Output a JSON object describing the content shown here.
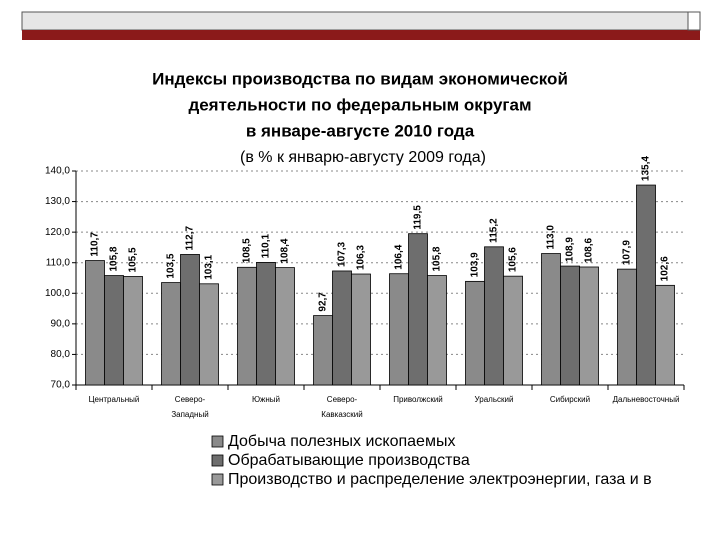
{
  "chart_data": {
    "type": "bar",
    "title": [
      "Индексы производства по видам экономической",
      "деятельности по федеральным округам",
      "в январе-августе 2010 года"
    ],
    "subtitle": "(в % к январю-августу 2009 года)",
    "categories": [
      "Центральный",
      "Северо-Западный",
      "Южный",
      "Северо-Кавказский",
      "Приволжский",
      "Уральский",
      "Сибирский",
      "Дальневосточный"
    ],
    "series": [
      {
        "name": "Добыча полезных ископаемых",
        "color": "#8a8a8a",
        "values": [
          110.7,
          103.5,
          108.5,
          92.7,
          106.4,
          103.9,
          113.0,
          107.9
        ],
        "value_labels": [
          "110,7",
          "103,5",
          "108,5",
          "92,7",
          "106,4",
          "103,9",
          "113,0",
          "107,9"
        ]
      },
      {
        "name": "Обрабатывающие производства",
        "color": "#6e6e6e",
        "values": [
          105.8,
          112.7,
          110.1,
          107.3,
          119.5,
          115.2,
          108.9,
          135.4
        ],
        "value_labels": [
          "105,8",
          "112,7",
          "110,1",
          "107,3",
          "119,5",
          "115,2",
          "108,9",
          "135,4"
        ]
      },
      {
        "name": "Производство и распределение электроэнергии, газа и в",
        "color": "#999999",
        "values": [
          105.5,
          103.1,
          108.4,
          106.3,
          105.8,
          105.6,
          108.6,
          102.6
        ],
        "value_labels": [
          "105,5",
          "103,1",
          "108,4",
          "106,3",
          "105,8",
          "105,6",
          "108,6",
          "102,6"
        ]
      }
    ],
    "ylim": [
      70,
      140
    ],
    "yticks": [
      {
        "value": 70,
        "label": "70,0"
      },
      {
        "value": 80,
        "label": "80,0"
      },
      {
        "value": 90,
        "label": "90,0"
      },
      {
        "value": 100,
        "label": "100,0"
      },
      {
        "value": 110,
        "label": "110,0"
      },
      {
        "value": 120,
        "label": "120,0"
      },
      {
        "value": 130,
        "label": "130,0"
      },
      {
        "value": 140,
        "label": "140,0"
      }
    ],
    "grid": true
  }
}
